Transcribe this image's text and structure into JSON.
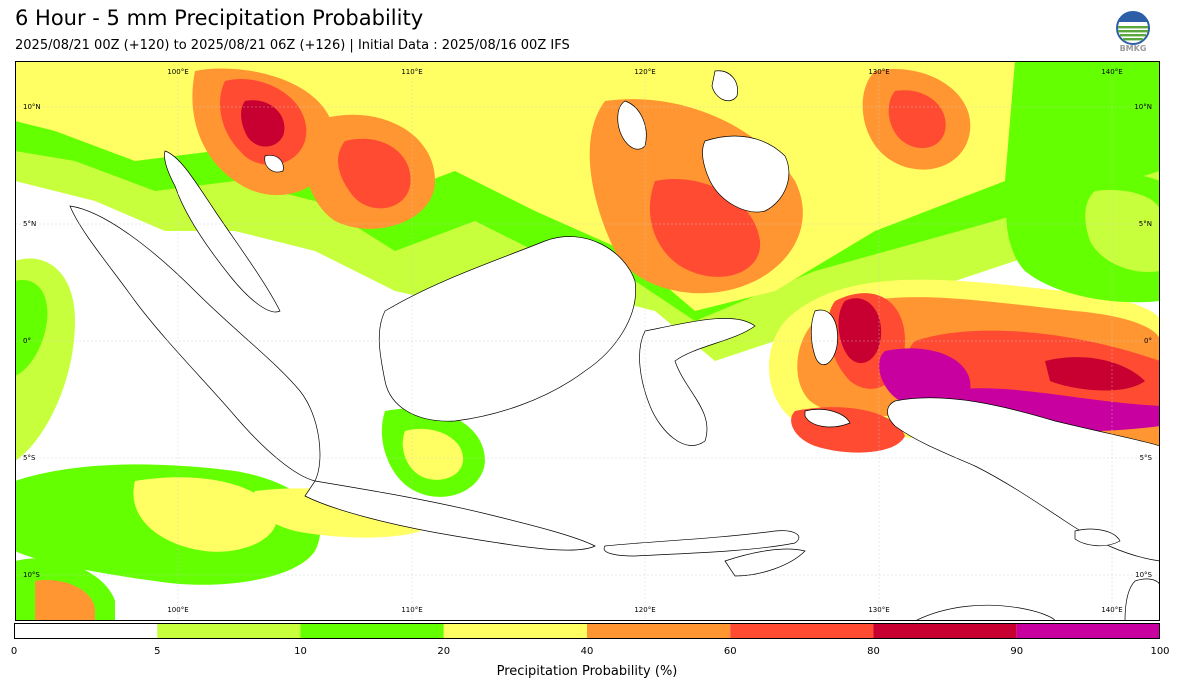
{
  "header": {
    "title": "6 Hour - 5 mm Precipitation Probability",
    "subtitle": "2025/08/21 00Z (+120) to 2025/08/21 06Z (+126) | Initial Data : 2025/08/16 00Z IFS"
  },
  "logo": {
    "text": "BMKG",
    "name": "bmkg-logo"
  },
  "map": {
    "lon_labels_top": [
      "100°E",
      "110°E",
      "120°E",
      "130°E",
      "140°E"
    ],
    "lon_labels_bottom": [
      "100°E",
      "110°E",
      "120°E",
      "130°E",
      "140°E"
    ],
    "lat_labels_left": [
      "10°N",
      "5°N",
      "0°",
      "5°S",
      "10°S"
    ],
    "lat_labels_right": [
      "10°N",
      "5°N",
      "0°",
      "5°S",
      "10°S"
    ],
    "lon_range": [
      93,
      142
    ],
    "lat_range": [
      -12,
      12
    ]
  },
  "colorbar": {
    "boundaries": [
      0,
      5,
      10,
      20,
      40,
      60,
      80,
      90,
      100
    ],
    "tick_labels": [
      "0",
      "5",
      "10",
      "20",
      "40",
      "60",
      "80",
      "90",
      "100"
    ],
    "colors": [
      "#ffffff",
      "#c8ff3c",
      "#64ff00",
      "#ffff64",
      "#ff9632",
      "#ff4b32",
      "#c80032",
      "#c800a0"
    ],
    "label": "Precipitation Probability (%)"
  }
}
